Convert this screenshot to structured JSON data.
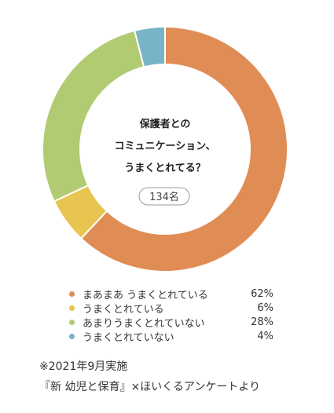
{
  "chart_data": {
    "type": "pie",
    "center_lines": [
      "保護者との",
      "コミュニケーション、",
      "うまくとれてる？"
    ],
    "center_count": "134名",
    "slices": [
      {
        "label": "まあまあ うまくとれている",
        "value": 62,
        "display": "62%",
        "color": "#E08C55"
      },
      {
        "label": "うまくとれている",
        "value": 6,
        "display": "6%",
        "color": "#E8C451"
      },
      {
        "label": "あまりうまくとれていない",
        "value": 28,
        "display": "28%",
        "color": "#B1CB72"
      },
      {
        "label": "うまくとれていない",
        "value": 4,
        "display": "4%",
        "color": "#79B3C6"
      }
    ]
  },
  "footnote": {
    "line1": "※2021年9月実施",
    "line2": "『新 幼児と保育』×ほいくるアンケートより"
  }
}
